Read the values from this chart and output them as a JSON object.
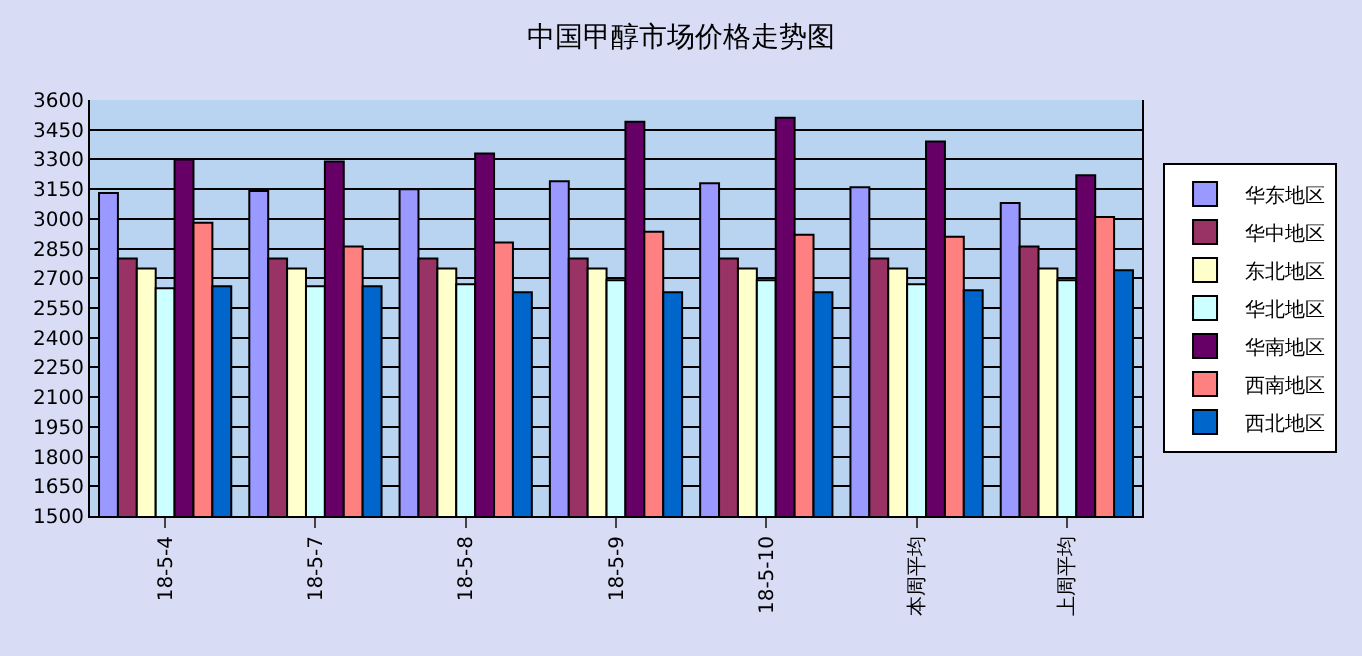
{
  "chart_data": {
    "type": "bar",
    "title": "中国甲醇市场价格走势图",
    "categories": [
      "18-5-4",
      "18-5-7",
      "18-5-8",
      "18-5-9",
      "18-5-10",
      "本周平均",
      "上周平均"
    ],
    "series": [
      {
        "name": "华东地区",
        "color": "#9999ff",
        "values": [
          3130,
          3140,
          3150,
          3190,
          3180,
          3160,
          3080
        ]
      },
      {
        "name": "华中地区",
        "color": "#993366",
        "values": [
          2800,
          2800,
          2800,
          2800,
          2800,
          2800,
          2860
        ]
      },
      {
        "name": "东北地区",
        "color": "#ffffcc",
        "values": [
          2750,
          2750,
          2750,
          2750,
          2750,
          2750,
          2750
        ]
      },
      {
        "name": "华北地区",
        "color": "#ccffff",
        "values": [
          2650,
          2660,
          2670,
          2690,
          2690,
          2670,
          2690
        ]
      },
      {
        "name": "华南地区",
        "color": "#660066",
        "values": [
          3300,
          3290,
          3330,
          3490,
          3510,
          3390,
          3220
        ]
      },
      {
        "name": "西南地区",
        "color": "#ff8080",
        "values": [
          2980,
          2860,
          2880,
          2935,
          2920,
          2910,
          3010
        ]
      },
      {
        "name": "西北地区",
        "color": "#0066cc",
        "values": [
          2660,
          2660,
          2630,
          2630,
          2630,
          2640,
          2740
        ]
      }
    ],
    "ylim": [
      1500,
      3600
    ],
    "yticks": [
      1500,
      1650,
      1800,
      1950,
      2100,
      2250,
      2400,
      2550,
      2700,
      2850,
      3000,
      3150,
      3300,
      3450,
      3600
    ],
    "grid": "y",
    "legend": "right"
  }
}
